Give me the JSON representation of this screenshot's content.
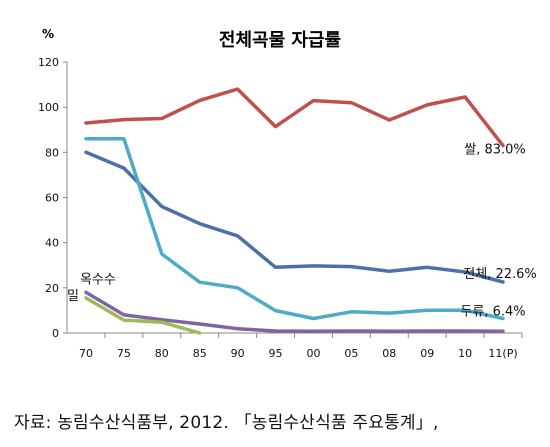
{
  "chart_data": {
    "type": "line",
    "title": "전체곡물 자급률",
    "ylabel": "%",
    "ylim": [
      0,
      120
    ],
    "yticks": [
      0,
      20,
      40,
      60,
      80,
      100,
      120
    ],
    "categories": [
      "70",
      "75",
      "80",
      "85",
      "90",
      "95",
      "00",
      "05",
      "08",
      "09",
      "10",
      "11(P)"
    ],
    "grid": false,
    "series": [
      {
        "name": "쌀",
        "end_label": "쌀, 83.0%",
        "color": "#c0504d",
        "values": [
          93,
          94.5,
          95,
          103,
          108,
          91.4,
          102.9,
          102,
          94.3,
          101,
          104.5,
          83.0
        ]
      },
      {
        "name": "전체",
        "end_label": "전체, 22.6%",
        "color": "#4f6fa8",
        "values": [
          80,
          73,
          56,
          48.4,
          43,
          29.1,
          29.7,
          29.4,
          27.3,
          29.1,
          27,
          22.6
        ]
      },
      {
        "name": "두류",
        "end_label": "두류, 6.4%",
        "color": "#4bacc6",
        "values": [
          86,
          86,
          35,
          22.5,
          20,
          9.9,
          6.4,
          9.4,
          8.8,
          10.1,
          10.1,
          6.4
        ]
      },
      {
        "name": "옥수수",
        "end_label": "옥수수",
        "color": "#8064a2",
        "values": [
          18,
          8,
          5.9,
          4,
          1.9,
          0.9,
          0.8,
          0.9,
          0.8,
          0.9,
          0.9,
          0.8
        ]
      },
      {
        "name": "밀",
        "end_label": "밀",
        "color": "#9bbb59",
        "values": [
          15.5,
          5.7,
          4.8,
          0,
          null,
          null,
          null,
          null,
          null,
          null,
          null,
          null
        ]
      }
    ]
  },
  "source_text": "자료: 농림수산식품부, 2012. 「농림수산식품 주요통계」,"
}
